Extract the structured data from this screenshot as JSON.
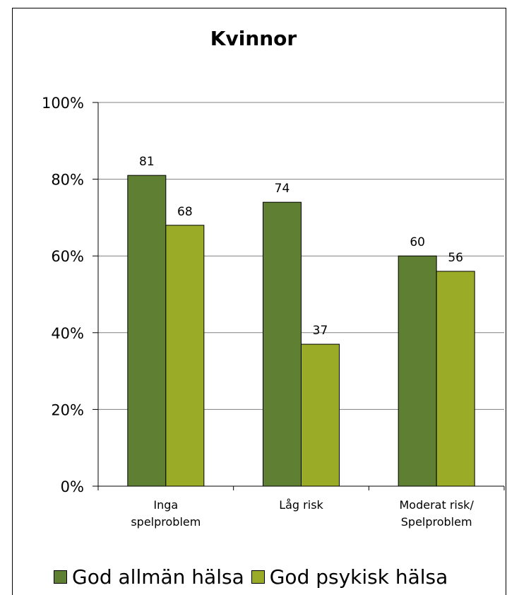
{
  "chart_data": {
    "type": "bar",
    "title": "Kvinnor",
    "categories": [
      "Inga spelproblem",
      "Låg risk",
      "Moderat risk/ Spelproblem"
    ],
    "category_lines": [
      [
        "Inga",
        "spelproblem"
      ],
      [
        "Låg risk"
      ],
      [
        "Moderat risk/",
        "Spelproblem"
      ]
    ],
    "series": [
      {
        "name": "God allmän hälsa",
        "values": [
          81,
          74,
          60
        ],
        "color": "#5f7f33"
      },
      {
        "name": "God psykisk hälsa",
        "values": [
          68,
          37,
          56
        ],
        "color": "#9aab27"
      }
    ],
    "ylim": [
      0,
      100
    ],
    "yticks": [
      0,
      20,
      40,
      60,
      80,
      100
    ],
    "ytick_labels": [
      "0%",
      "20%",
      "40%",
      "60%",
      "80%",
      "100%"
    ],
    "xlabel": "",
    "ylabel": "",
    "grid": true,
    "legend_position": "bottom"
  }
}
